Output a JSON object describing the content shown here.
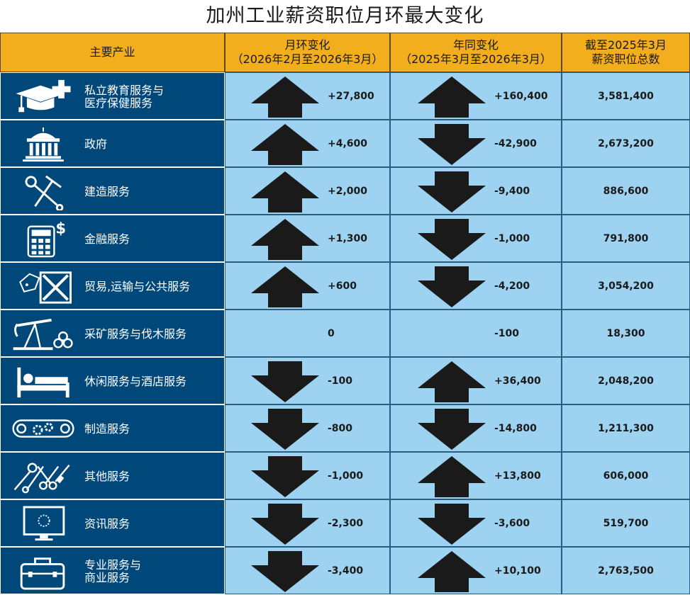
{
  "title": "加州工业薪资职位月环最大变化",
  "headers": {
    "industry": "主要产业",
    "mom_line1": "月环变化",
    "mom_line2": "（2026年2月至2026年3月）",
    "yoy_line1": "年同变化",
    "yoy_line2": "（2025年3月至2026年3月）",
    "total_line1": "截至2025年3月",
    "total_line2": "薪资职位总数"
  },
  "chart_data": {
    "type": "table",
    "rows": [
      {
        "industry": "私立教育服务与\n医疗保健服务",
        "icon": "graduation-cap-medical-cross-icon",
        "mom": "+27,800",
        "mom_dir": "up",
        "yoy": "+160,400",
        "yoy_dir": "up",
        "total": "3,581,400"
      },
      {
        "industry": "政府",
        "icon": "government-building-icon",
        "mom": "+4,600",
        "mom_dir": "up",
        "yoy": "-42,900",
        "yoy_dir": "down",
        "total": "2,673,200"
      },
      {
        "industry": "建造服务",
        "icon": "hammer-wrench-icon",
        "mom": "+2,000",
        "mom_dir": "up",
        "yoy": "-9,400",
        "yoy_dir": "down",
        "total": "886,600"
      },
      {
        "industry": "金融服务",
        "icon": "calculator-dollar-icon",
        "mom": "+1,300",
        "mom_dir": "up",
        "yoy": "-1,000",
        "yoy_dir": "down",
        "total": "791,800"
      },
      {
        "industry": "贸易,运输与公共服务",
        "icon": "shipping-crate-tag-icon",
        "mom": "+600",
        "mom_dir": "up",
        "yoy": "-4,200",
        "yoy_dir": "down",
        "total": "3,054,200"
      },
      {
        "industry": "采矿服务与伐木服务",
        "icon": "oil-pump-logs-icon",
        "mom": "0",
        "mom_dir": "none",
        "yoy": "-100",
        "yoy_dir": "none",
        "total": "18,300"
      },
      {
        "industry": "休闲服务与酒店服务",
        "icon": "bed-icon",
        "mom": "-100",
        "mom_dir": "down",
        "yoy": "+36,400",
        "yoy_dir": "up",
        "total": "2,048,200"
      },
      {
        "industry": "制造服务",
        "icon": "conveyor-gears-icon",
        "mom": "-800",
        "mom_dir": "down",
        "yoy": "-14,800",
        "yoy_dir": "down",
        "total": "1,211,300"
      },
      {
        "industry": "其他服务",
        "icon": "tools-scissors-icon",
        "mom": "-1,000",
        "mom_dir": "down",
        "yoy": "+13,800",
        "yoy_dir": "up",
        "total": "606,000"
      },
      {
        "industry": "资讯服务",
        "icon": "computer-monitor-icon",
        "mom": "-2,300",
        "mom_dir": "down",
        "yoy": "-3,600",
        "yoy_dir": "down",
        "total": "519,700"
      },
      {
        "industry": "专业服务与\n商业服务",
        "icon": "briefcase-icon",
        "mom": "-3,400",
        "mom_dir": "down",
        "yoy": "+10,100",
        "yoy_dir": "up",
        "total": "2,763,500"
      }
    ]
  },
  "colors": {
    "header": "#f2ae1c",
    "industry_bg": "#00477a",
    "data_bg": "#9dd3f0",
    "arrow": "#1a1a1a"
  }
}
